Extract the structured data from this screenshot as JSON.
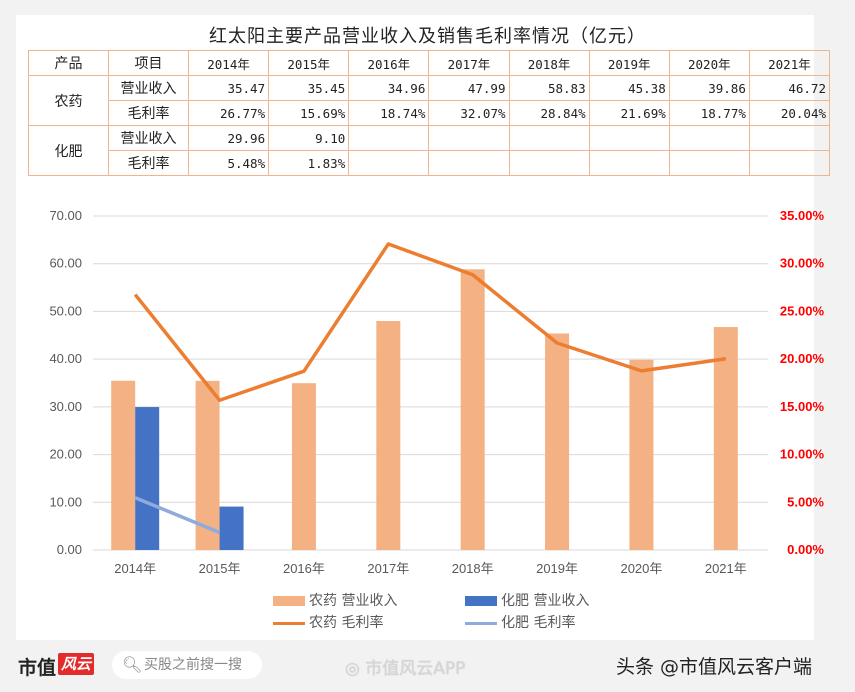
{
  "title": "红太阳主要产品营业收入及销售毛利率情况（亿元）",
  "table": {
    "headers": [
      "产品",
      "项目",
      "2014年",
      "2015年",
      "2016年",
      "2017年",
      "2018年",
      "2019年",
      "2020年",
      "2021年"
    ],
    "groups": [
      {
        "product": "农药",
        "rows": [
          {
            "item": "营业收入",
            "values": [
              "35.47",
              "35.45",
              "34.96",
              "47.99",
              "58.83",
              "45.38",
              "39.86",
              "46.72"
            ]
          },
          {
            "item": "毛利率",
            "values": [
              "26.77%",
              "15.69%",
              "18.74%",
              "32.07%",
              "28.84%",
              "21.69%",
              "18.77%",
              "20.04%"
            ]
          }
        ]
      },
      {
        "product": "化肥",
        "rows": [
          {
            "item": "营业收入",
            "values": [
              "29.96",
              "9.10",
              "",
              "",
              "",
              "",
              "",
              ""
            ]
          },
          {
            "item": "毛利率",
            "values": [
              "5.48%",
              "1.83%",
              "",
              "",
              "",
              "",
              "",
              ""
            ]
          }
        ]
      }
    ]
  },
  "chart_data": {
    "type": "bar",
    "title": "红太阳主要产品营业收入及销售毛利率情况（亿元）",
    "categories": [
      "2014年",
      "2015年",
      "2016年",
      "2017年",
      "2018年",
      "2019年",
      "2020年",
      "2021年"
    ],
    "series": [
      {
        "name": "农药 营业收入",
        "type": "bar",
        "axis": "left",
        "color": "#f4b183",
        "values": [
          35.47,
          35.45,
          34.96,
          47.99,
          58.83,
          45.38,
          39.86,
          46.72
        ]
      },
      {
        "name": "化肥 营业收入",
        "type": "bar",
        "axis": "left",
        "color": "#4472c4",
        "values": [
          29.96,
          9.1,
          null,
          null,
          null,
          null,
          null,
          null
        ]
      },
      {
        "name": "农药 毛利率",
        "type": "line",
        "axis": "right",
        "color": "#ed7d31",
        "values": [
          26.77,
          15.69,
          18.74,
          32.07,
          28.84,
          21.69,
          18.77,
          20.04
        ]
      },
      {
        "name": "化肥 毛利率",
        "type": "line",
        "axis": "right",
        "color": "#8faadc",
        "values": [
          5.48,
          1.83,
          null,
          null,
          null,
          null,
          null,
          null
        ]
      }
    ],
    "left_axis": {
      "ylim": [
        0,
        70
      ],
      "ticks": [
        "0.00",
        "10.00",
        "20.00",
        "30.00",
        "40.00",
        "50.00",
        "60.00",
        "70.00"
      ]
    },
    "right_axis": {
      "ylim": [
        0,
        35
      ],
      "unit": "%",
      "color": "#ff0000",
      "ticks": [
        "0.00%",
        "5.00%",
        "10.00%",
        "15.00%",
        "20.00%",
        "25.00%",
        "30.00%",
        "35.00%"
      ]
    },
    "grid": true,
    "legend_position": "bottom",
    "xlabel": "",
    "ylabel": ""
  },
  "legend": [
    {
      "label": "农药 营业收入",
      "kind": "box",
      "color": "#f4b183"
    },
    {
      "label": "化肥 营业收入",
      "kind": "box",
      "color": "#4472c4"
    },
    {
      "label": "农药 毛利率",
      "kind": "line",
      "color": "#ed7d31"
    },
    {
      "label": "化肥 毛利率",
      "kind": "line",
      "color": "#8faadc"
    }
  ],
  "footer": {
    "brand_text": "市值",
    "brand_logo_text": "风云",
    "search_placeholder": "买股之前搜一搜",
    "weibo_text": "市值风云APP",
    "toutiao_text": "头条 @市值风云客户端"
  }
}
